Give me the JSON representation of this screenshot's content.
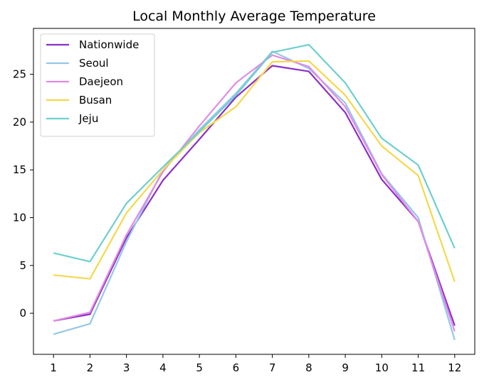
{
  "chart_data": {
    "type": "line",
    "title": "Local Monthly Average Temperature",
    "xlabel": "",
    "ylabel": "",
    "x": [
      1,
      2,
      3,
      4,
      5,
      6,
      7,
      8,
      9,
      10,
      11,
      12
    ],
    "xlim": [
      0.45,
      12.55
    ],
    "ylim": [
      -4.3,
      29.8
    ],
    "xticks": [
      1,
      2,
      3,
      4,
      5,
      6,
      7,
      8,
      9,
      10,
      11,
      12
    ],
    "yticks": [
      0,
      5,
      10,
      15,
      20,
      25
    ],
    "grid": false,
    "legend_position": "upper-left",
    "series": [
      {
        "name": "Nationwide",
        "color": "#8b2fc9",
        "values": [
          -0.8,
          -0.1,
          7.9,
          13.9,
          18.2,
          22.6,
          25.9,
          25.3,
          21.0,
          14.0,
          9.6,
          -1.3
        ]
      },
      {
        "name": "Seoul",
        "color": "#94c8e8",
        "values": [
          -2.2,
          -1.1,
          7.5,
          15.0,
          19.2,
          23.0,
          27.4,
          25.6,
          22.0,
          14.6,
          10.0,
          -2.8
        ]
      },
      {
        "name": "Daejeon",
        "color": "#e28be2",
        "values": [
          -0.8,
          0.1,
          8.2,
          14.8,
          19.6,
          24.1,
          27.0,
          25.8,
          21.6,
          14.5,
          9.6,
          -1.9
        ]
      },
      {
        "name": "Busan",
        "color": "#f5d84a",
        "values": [
          4.0,
          3.6,
          10.5,
          15.0,
          18.9,
          21.6,
          26.3,
          26.4,
          22.8,
          17.5,
          14.4,
          3.3
        ]
      },
      {
        "name": "Jeju",
        "color": "#6ecfcf",
        "values": [
          6.3,
          5.4,
          11.5,
          15.3,
          19.0,
          22.8,
          27.3,
          28.1,
          24.1,
          18.3,
          15.5,
          6.8
        ]
      }
    ]
  }
}
